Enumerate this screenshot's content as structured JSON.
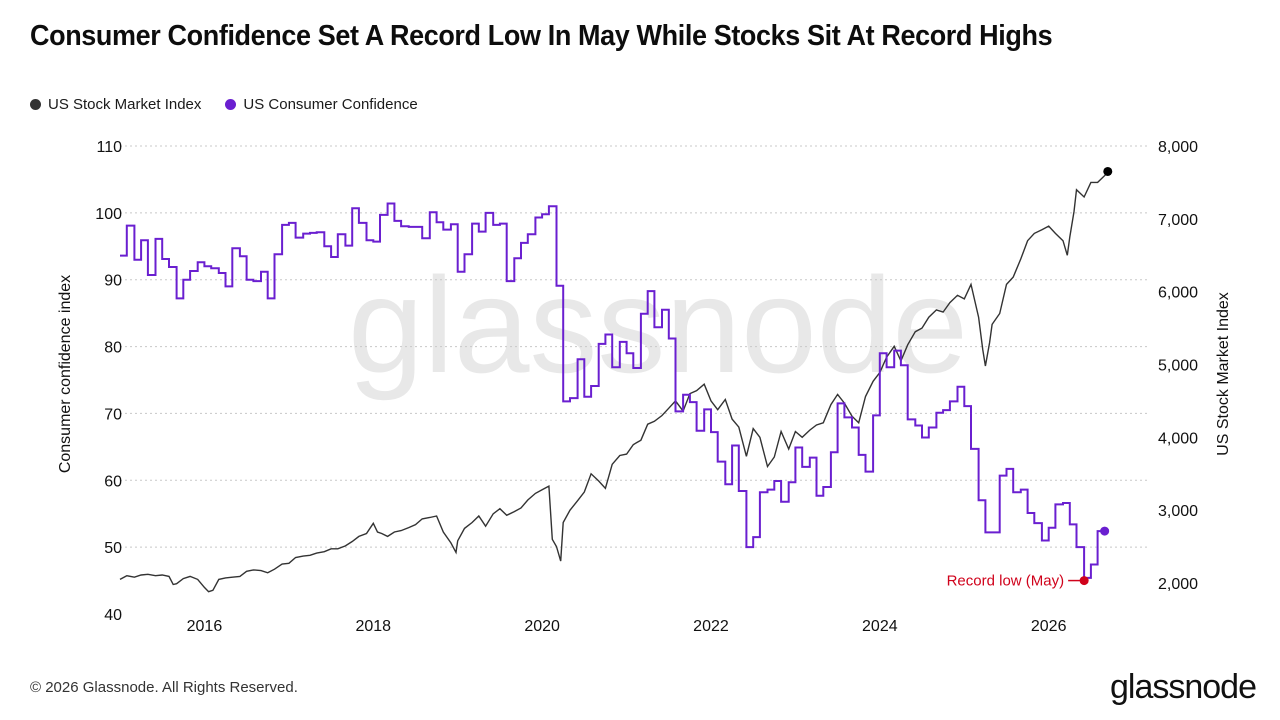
{
  "title": "Consumer Confidence Set A Record Low In May While Stocks Sit At Record Highs",
  "legend": [
    {
      "label": "US Stock Market Index",
      "color": "#333333"
    },
    {
      "label": "US Consumer Confidence",
      "color": "#6a1fd0"
    }
  ],
  "footer": "© 2026 Glassnode. All Rights Reserved.",
  "brand": "glassnode",
  "watermark": "glassnode",
  "chart_data": {
    "type": "line",
    "grid": true,
    "legend_position": "top-left",
    "x_ticks": [
      "2016",
      "2018",
      "2020",
      "2022",
      "2024",
      "2026"
    ],
    "x_range": [
      2015.0,
      2026.75
    ],
    "y_left": {
      "label": "Consumer confidence index",
      "range": [
        40,
        110
      ],
      "ticks": [
        "40",
        "50",
        "60",
        "70",
        "80",
        "90",
        "100",
        "110"
      ]
    },
    "y_right": {
      "label": "US Stock Market Index",
      "range": [
        1500,
        8000
      ],
      "ticks": [
        "2,000",
        "3,000",
        "4,000",
        "5,000",
        "6,000",
        "7,000",
        "8,000"
      ]
    },
    "annotation": {
      "text": "Record low (May)",
      "x": 2026.42,
      "y": 45,
      "color": "#d0021b"
    },
    "series": [
      {
        "name": "US Consumer Confidence",
        "axis": "left",
        "color": "#6a1fd0",
        "step": true,
        "x": [
          2015.0,
          2015.08,
          2015.17,
          2015.25,
          2015.33,
          2015.42,
          2015.5,
          2015.58,
          2015.67,
          2015.75,
          2015.83,
          2015.92,
          2016.0,
          2016.08,
          2016.17,
          2016.25,
          2016.33,
          2016.42,
          2016.5,
          2016.58,
          2016.67,
          2016.75,
          2016.83,
          2016.92,
          2017.0,
          2017.08,
          2017.17,
          2017.25,
          2017.33,
          2017.42,
          2017.5,
          2017.58,
          2017.67,
          2017.75,
          2017.83,
          2017.92,
          2018.0,
          2018.08,
          2018.17,
          2018.25,
          2018.33,
          2018.42,
          2018.5,
          2018.58,
          2018.67,
          2018.75,
          2018.83,
          2018.92,
          2019.0,
          2019.08,
          2019.17,
          2019.25,
          2019.33,
          2019.42,
          2019.5,
          2019.58,
          2019.67,
          2019.75,
          2019.83,
          2019.92,
          2020.0,
          2020.08,
          2020.17,
          2020.25,
          2020.33,
          2020.42,
          2020.5,
          2020.58,
          2020.67,
          2020.75,
          2020.83,
          2020.92,
          2021.0,
          2021.08,
          2021.17,
          2021.25,
          2021.33,
          2021.42,
          2021.5,
          2021.58,
          2021.67,
          2021.75,
          2021.83,
          2021.92,
          2022.0,
          2022.08,
          2022.17,
          2022.25,
          2022.33,
          2022.42,
          2022.5,
          2022.58,
          2022.67,
          2022.75,
          2022.83,
          2022.92,
          2023.0,
          2023.08,
          2023.17,
          2023.25,
          2023.33,
          2023.42,
          2023.5,
          2023.58,
          2023.67,
          2023.75,
          2023.83,
          2023.92,
          2024.0,
          2024.08,
          2024.17,
          2024.25,
          2024.33,
          2024.42,
          2024.5,
          2024.58,
          2024.67,
          2024.75,
          2024.83,
          2024.92,
          2025.0,
          2025.08,
          2025.17,
          2025.25,
          2025.33,
          2025.42,
          2025.5,
          2025.58,
          2025.67,
          2025.75,
          2025.83,
          2025.92,
          2026.0,
          2026.08,
          2026.17,
          2026.25,
          2026.33,
          2026.42,
          2026.5,
          2026.58
        ],
        "y": [
          93.6,
          98.1,
          93.0,
          95.9,
          90.7,
          96.1,
          93.1,
          91.9,
          87.2,
          90.0,
          91.3,
          92.6,
          92.0,
          91.7,
          91.0,
          89.0,
          94.7,
          93.5,
          90.0,
          89.8,
          91.2,
          87.2,
          93.8,
          98.2,
          98.5,
          96.3,
          96.9,
          97.0,
          97.1,
          95.0,
          93.4,
          96.8,
          95.1,
          100.7,
          98.5,
          95.9,
          95.7,
          99.7,
          101.4,
          98.8,
          98.0,
          97.9,
          97.9,
          96.2,
          100.1,
          98.6,
          97.5,
          98.3,
          91.2,
          93.8,
          98.4,
          97.2,
          100.0,
          98.2,
          98.4,
          89.8,
          93.2,
          95.5,
          96.8,
          99.3,
          99.8,
          101.0,
          89.1,
          71.8,
          72.3,
          78.1,
          72.5,
          74.1,
          80.4,
          81.8,
          76.9,
          80.7,
          79.0,
          76.8,
          84.9,
          88.3,
          82.9,
          85.5,
          81.2,
          70.3,
          72.8,
          71.7,
          67.4,
          70.6,
          67.2,
          62.8,
          59.4,
          65.2,
          58.4,
          50.0,
          51.5,
          58.2,
          58.6,
          59.9,
          56.8,
          59.7,
          64.9,
          62.0,
          63.4,
          57.7,
          59.0,
          64.2,
          71.5,
          69.4,
          67.9,
          63.8,
          61.3,
          69.7,
          79.0,
          76.9,
          79.4,
          77.2,
          69.1,
          68.2,
          66.4,
          67.9,
          70.1,
          70.5,
          71.8,
          74.0,
          71.1,
          64.7,
          57.0,
          52.2,
          52.2,
          60.7,
          61.7,
          58.2,
          58.6,
          55.1,
          53.6,
          51.0,
          52.9,
          56.4,
          56.6,
          53.4,
          50.0,
          45.4,
          47.4,
          52.4
        ]
      },
      {
        "name": "US Stock Market Index",
        "axis": "right",
        "color": "#333333",
        "step": false,
        "x": [
          2015.0,
          2015.08,
          2015.17,
          2015.25,
          2015.33,
          2015.42,
          2015.5,
          2015.58,
          2015.63,
          2015.67,
          2015.75,
          2015.83,
          2015.92,
          2016.0,
          2016.05,
          2016.1,
          2016.17,
          2016.25,
          2016.33,
          2016.42,
          2016.5,
          2016.58,
          2016.67,
          2016.75,
          2016.83,
          2016.92,
          2017.0,
          2017.08,
          2017.17,
          2017.25,
          2017.33,
          2017.42,
          2017.5,
          2017.58,
          2017.67,
          2017.75,
          2017.83,
          2017.92,
          2018.0,
          2018.05,
          2018.1,
          2018.17,
          2018.25,
          2018.33,
          2018.42,
          2018.5,
          2018.58,
          2018.67,
          2018.75,
          2018.83,
          2018.92,
          2018.98,
          2019.0,
          2019.08,
          2019.17,
          2019.25,
          2019.33,
          2019.42,
          2019.5,
          2019.58,
          2019.67,
          2019.75,
          2019.83,
          2019.92,
          2020.0,
          2020.08,
          2020.12,
          2020.17,
          2020.22,
          2020.25,
          2020.33,
          2020.42,
          2020.5,
          2020.58,
          2020.67,
          2020.75,
          2020.83,
          2020.92,
          2021.0,
          2021.08,
          2021.17,
          2021.25,
          2021.33,
          2021.42,
          2021.5,
          2021.58,
          2021.67,
          2021.75,
          2021.83,
          2021.92,
          2022.0,
          2022.08,
          2022.17,
          2022.25,
          2022.33,
          2022.42,
          2022.5,
          2022.58,
          2022.67,
          2022.75,
          2022.83,
          2022.92,
          2023.0,
          2023.08,
          2023.17,
          2023.25,
          2023.33,
          2023.42,
          2023.5,
          2023.58,
          2023.67,
          2023.75,
          2023.83,
          2023.92,
          2024.0,
          2024.08,
          2024.17,
          2024.25,
          2024.33,
          2024.42,
          2024.5,
          2024.58,
          2024.67,
          2024.75,
          2024.83,
          2024.92,
          2025.0,
          2025.08,
          2025.17,
          2025.22,
          2025.25,
          2025.3,
          2025.33,
          2025.42,
          2025.5,
          2025.58,
          2025.67,
          2025.75,
          2025.83,
          2025.92,
          2026.0,
          2026.08,
          2026.17,
          2026.22,
          2026.25,
          2026.3,
          2026.33,
          2026.42,
          2026.5,
          2026.58,
          2026.67,
          2026.7
        ],
        "y": [
          2050,
          2100,
          2080,
          2110,
          2120,
          2100,
          2110,
          2090,
          1980,
          1990,
          2060,
          2090,
          2050,
          1940,
          1880,
          1900,
          2050,
          2070,
          2080,
          2090,
          2160,
          2180,
          2170,
          2140,
          2190,
          2260,
          2270,
          2350,
          2370,
          2380,
          2410,
          2430,
          2470,
          2470,
          2510,
          2570,
          2640,
          2680,
          2820,
          2700,
          2680,
          2640,
          2700,
          2720,
          2760,
          2800,
          2880,
          2900,
          2920,
          2700,
          2550,
          2420,
          2580,
          2750,
          2830,
          2920,
          2780,
          2950,
          3020,
          2930,
          2980,
          3030,
          3140,
          3230,
          3280,
          3330,
          2600,
          2500,
          2300,
          2830,
          3000,
          3130,
          3250,
          3500,
          3400,
          3300,
          3630,
          3750,
          3770,
          3900,
          3960,
          4180,
          4220,
          4300,
          4400,
          4500,
          4360,
          4600,
          4640,
          4730,
          4500,
          4380,
          4520,
          4250,
          4140,
          3740,
          4120,
          4000,
          3600,
          3730,
          4080,
          3840,
          4080,
          4000,
          4100,
          4170,
          4200,
          4450,
          4590,
          4470,
          4290,
          4200,
          4560,
          4770,
          4890,
          5100,
          5250,
          5050,
          5270,
          5450,
          5500,
          5650,
          5750,
          5720,
          5850,
          5950,
          5900,
          6100,
          5650,
          5200,
          4980,
          5300,
          5550,
          5700,
          6100,
          6200,
          6450,
          6700,
          6800,
          6850,
          6900,
          6800,
          6700,
          6500,
          6750,
          7100,
          7400,
          7300,
          7500,
          7500,
          7600,
          7650
        ]
      }
    ]
  }
}
